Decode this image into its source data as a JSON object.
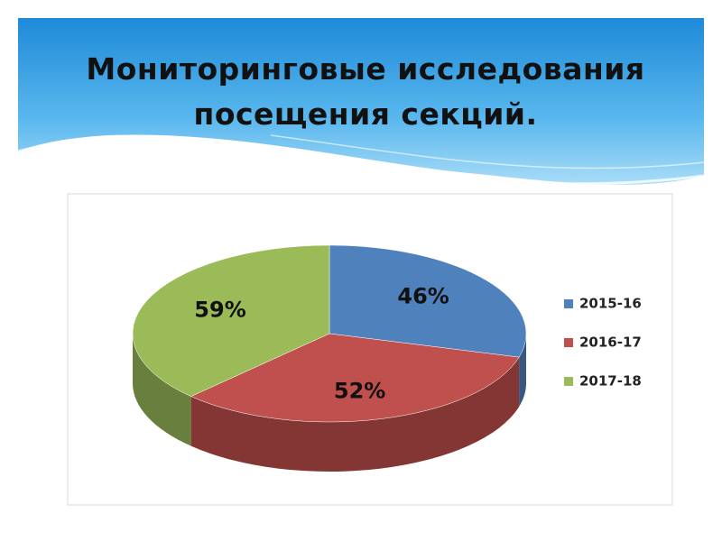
{
  "chart_data": {
    "type": "pie",
    "title": "Мониторинговые исследования посещения секций.",
    "categories": [
      "2015-16",
      "2016-17",
      "2017-18"
    ],
    "values": [
      46,
      52,
      59
    ],
    "value_labels": [
      "46%",
      "52%",
      "59%"
    ],
    "colors": [
      "#4f81bd",
      "#c0504d",
      "#9bbb59"
    ],
    "legend": "right"
  }
}
